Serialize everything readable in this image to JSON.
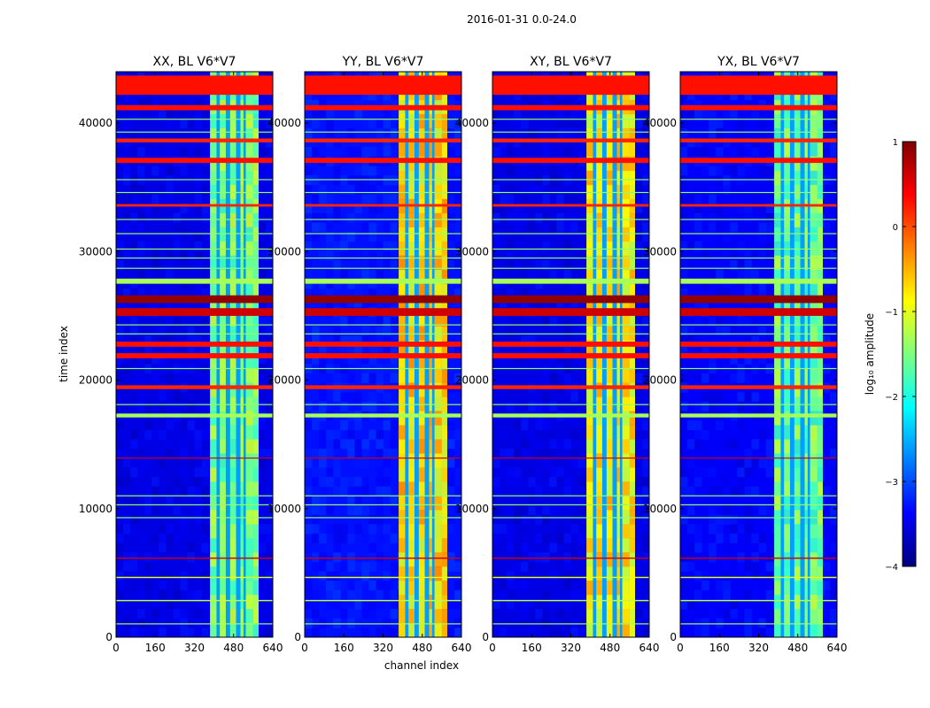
{
  "figure": {
    "suptitle": "2016-01-31 0.0-24.0",
    "xlabel": "channel index",
    "ylabel": "time index"
  },
  "chart_data": {
    "type": "heatmap",
    "xlim": [
      0,
      640
    ],
    "ylim": [
      0,
      44000
    ],
    "x_ticks": [
      0,
      160,
      320,
      480,
      640
    ],
    "y_ticks": [
      0,
      10000,
      20000,
      30000,
      40000
    ],
    "x_tick_labels": [
      "0",
      "160",
      "320",
      "480",
      "640"
    ],
    "y_tick_labels": [
      "0",
      "10000",
      "20000",
      "30000",
      "40000"
    ],
    "value_label": "log₁₀ amplitude",
    "colorbar": {
      "range": [
        -4,
        1
      ],
      "ticks": [
        1,
        0,
        -1,
        -2,
        -3,
        -4
      ],
      "tick_labels": [
        "1",
        "0",
        "−1",
        "−2",
        "−3",
        "−4"
      ],
      "colormap": [
        "#00007f",
        "#0000ff",
        "#007fff",
        "#00ffff",
        "#7fff7f",
        "#ffff00",
        "#ff7f00",
        "#ff0000",
        "#7f0000"
      ]
    },
    "panels": [
      {
        "title": "XX, BL V6*V7",
        "background_value": -3.5,
        "signal_value": -1.5
      },
      {
        "title": "YY, BL V6*V7",
        "background_value": -3.3,
        "signal_value": -0.7
      },
      {
        "title": "XY, BL V6*V7",
        "background_value": -3.5,
        "signal_value": -0.8
      },
      {
        "title": "YX, BL V6*V7",
        "background_value": -3.4,
        "signal_value": -1.6
      }
    ],
    "signal_band_channels": [
      [
        384,
        410
      ],
      [
        424,
        448
      ],
      [
        466,
        490
      ],
      [
        508,
        520
      ],
      [
        530,
        560
      ],
      [
        560,
        582
      ]
    ],
    "gap_band_value": -2.6,
    "flagged_rows": [
      {
        "start": 42200,
        "end": 43700,
        "value": 0.3
      },
      {
        "start": 41000,
        "end": 41400,
        "value": 0.3
      },
      {
        "start": 38500,
        "end": 38800,
        "value": 0.2
      },
      {
        "start": 36900,
        "end": 37300,
        "value": 0.3
      },
      {
        "start": 33500,
        "end": 33700,
        "value": 0.2
      },
      {
        "start": 27500,
        "end": 27900,
        "value": -1.3
      },
      {
        "start": 26000,
        "end": 26600,
        "value": 0.9
      },
      {
        "start": 25000,
        "end": 25600,
        "value": 0.6
      },
      {
        "start": 22600,
        "end": 23000,
        "value": 0.3
      },
      {
        "start": 21700,
        "end": 22100,
        "value": 0.3
      },
      {
        "start": 19300,
        "end": 19600,
        "value": 0.2
      },
      {
        "start": 17100,
        "end": 17400,
        "value": -1.3
      },
      {
        "start": 13900,
        "end": 13980,
        "value": 0.6
      },
      {
        "start": 6100,
        "end": 6200,
        "value": 0.6
      },
      {
        "start": 4600,
        "end": 4700,
        "value": -1.0
      },
      {
        "start": 2800,
        "end": 2900,
        "value": -1.2
      },
      {
        "start": 1000,
        "end": 1080,
        "value": -1.3
      }
    ],
    "thin_lines": [
      40300,
      39300,
      35600,
      34600,
      32500,
      31400,
      30200,
      29500,
      28700,
      24300,
      23600,
      20900,
      18100,
      11000,
      10300,
      9300
    ]
  }
}
